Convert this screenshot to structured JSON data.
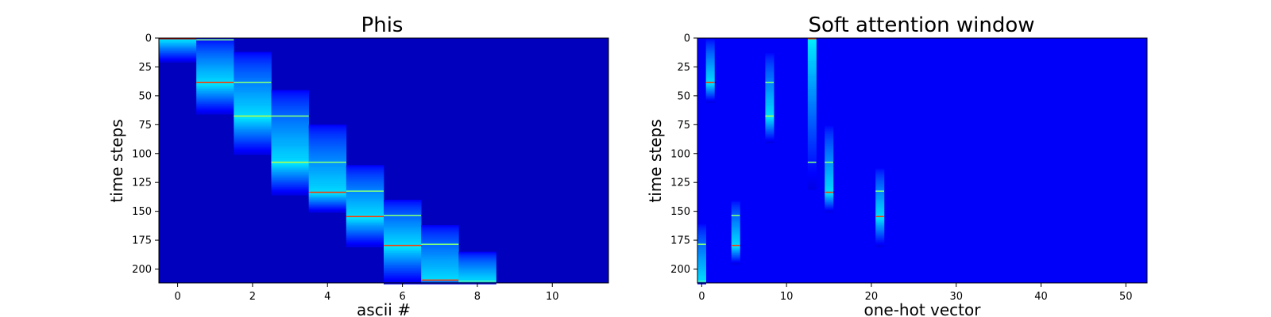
{
  "chart_data": [
    {
      "type": "heatmap",
      "title": "Phis",
      "xlabel": "ascii #",
      "ylabel": "time steps",
      "x_ticks": [
        0,
        2,
        4,
        6,
        8,
        10
      ],
      "y_ticks": [
        0,
        25,
        50,
        75,
        100,
        125,
        150,
        175,
        200
      ],
      "xlim": [
        -0.5,
        11.5
      ],
      "ylim": [
        212,
        0
      ],
      "n_cols": 12,
      "n_rows": 212,
      "colormap": "jet",
      "background_value": 0.06,
      "columns": [
        {
          "col": 0,
          "start": 0,
          "end": 20,
          "peak": 0,
          "peak_value": 0.95
        },
        {
          "col": 1,
          "start": 0,
          "end": 65,
          "peak": 38,
          "peak_value": 0.82
        },
        {
          "col": 2,
          "start": 12,
          "end": 100,
          "peak": 67,
          "peak_value": 0.55
        },
        {
          "col": 3,
          "start": 45,
          "end": 135,
          "peak": 107,
          "peak_value": 0.55
        },
        {
          "col": 4,
          "start": 75,
          "end": 150,
          "peak": 133,
          "peak_value": 0.82
        },
        {
          "col": 5,
          "start": 110,
          "end": 180,
          "peak": 154,
          "peak_value": 0.82
        },
        {
          "col": 6,
          "start": 140,
          "end": 212,
          "peak": 179,
          "peak_value": 0.82
        },
        {
          "col": 7,
          "start": 162,
          "end": 212,
          "peak": 209,
          "peak_value": 0.82
        },
        {
          "col": 8,
          "start": 185,
          "end": 212,
          "peak": 210,
          "peak_value": 0.45
        }
      ],
      "cyan_lines": [
        {
          "col": 1,
          "row": 1
        },
        {
          "col": 2,
          "row": 38
        },
        {
          "col": 3,
          "row": 67
        },
        {
          "col": 4,
          "row": 107
        },
        {
          "col": 5,
          "row": 132
        },
        {
          "col": 6,
          "row": 153
        },
        {
          "col": 7,
          "row": 178
        }
      ]
    },
    {
      "type": "heatmap",
      "title": "Soft attention window",
      "xlabel": "one-hot vector",
      "ylabel": "time steps",
      "x_ticks": [
        0,
        10,
        20,
        30,
        40,
        50
      ],
      "y_ticks": [
        0,
        25,
        50,
        75,
        100,
        125,
        150,
        175,
        200
      ],
      "xlim": [
        -0.5,
        52.5
      ],
      "ylim": [
        212,
        0
      ],
      "n_cols": 53,
      "n_rows": 212,
      "colormap": "jet",
      "background_value": 0.12,
      "columns": [
        {
          "col": 0,
          "start": 160,
          "end": 212,
          "peak": 210,
          "peak_value": 0.45
        },
        {
          "col": 1,
          "start": 0,
          "end": 55,
          "peak": 38,
          "peak_value": 0.82
        },
        {
          "col": 4,
          "start": 140,
          "end": 195,
          "peak": 179,
          "peak_value": 0.82
        },
        {
          "col": 8,
          "start": 12,
          "end": 90,
          "peak": 67,
          "peak_value": 0.55
        },
        {
          "col": 13,
          "start": 0,
          "end": 130,
          "peak": 0,
          "peak_value": 0.82
        },
        {
          "col": 15,
          "start": 75,
          "end": 150,
          "peak": 133,
          "peak_value": 0.82
        },
        {
          "col": 21,
          "start": 112,
          "end": 180,
          "peak": 154,
          "peak_value": 0.82
        }
      ],
      "cyan_lines": [
        {
          "col": 0,
          "row": 178
        },
        {
          "col": 4,
          "row": 153
        },
        {
          "col": 8,
          "row": 38
        },
        {
          "col": 13,
          "row": 107
        },
        {
          "col": 15,
          "row": 107
        },
        {
          "col": 21,
          "row": 132
        }
      ]
    }
  ]
}
